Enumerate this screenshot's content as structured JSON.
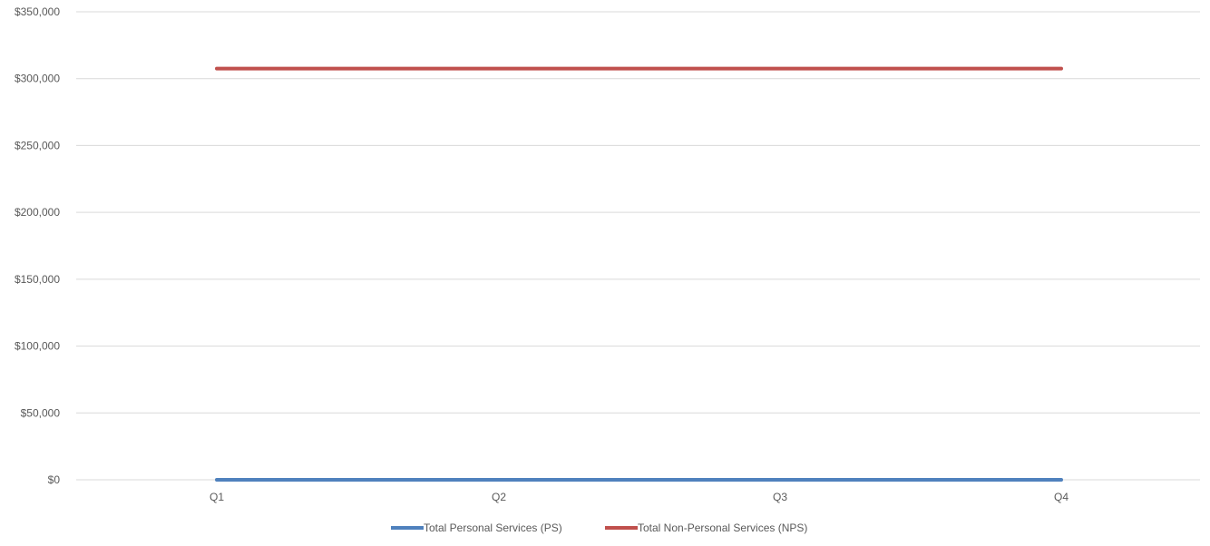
{
  "chart_data": {
    "type": "line",
    "categories": [
      "Q1",
      "Q2",
      "Q3",
      "Q4"
    ],
    "series": [
      {
        "name": "Total Personal Services (PS)",
        "color": "#4f81bd",
        "values": [
          0,
          0,
          0,
          0
        ]
      },
      {
        "name": "Total Non-Personal Services (NPS)",
        "color": "#c0504d",
        "values": [
          307500,
          307500,
          307500,
          307500
        ]
      }
    ],
    "ylim": [
      0,
      350000
    ],
    "y_ticks": [
      "$0",
      "$50,000",
      "$100,000",
      "$150,000",
      "$200,000",
      "$250,000",
      "$300,000",
      "$350,000"
    ],
    "y_tick_values": [
      0,
      50000,
      100000,
      150000,
      200000,
      250000,
      300000,
      350000
    ],
    "grid": true,
    "legend_position": "bottom"
  }
}
